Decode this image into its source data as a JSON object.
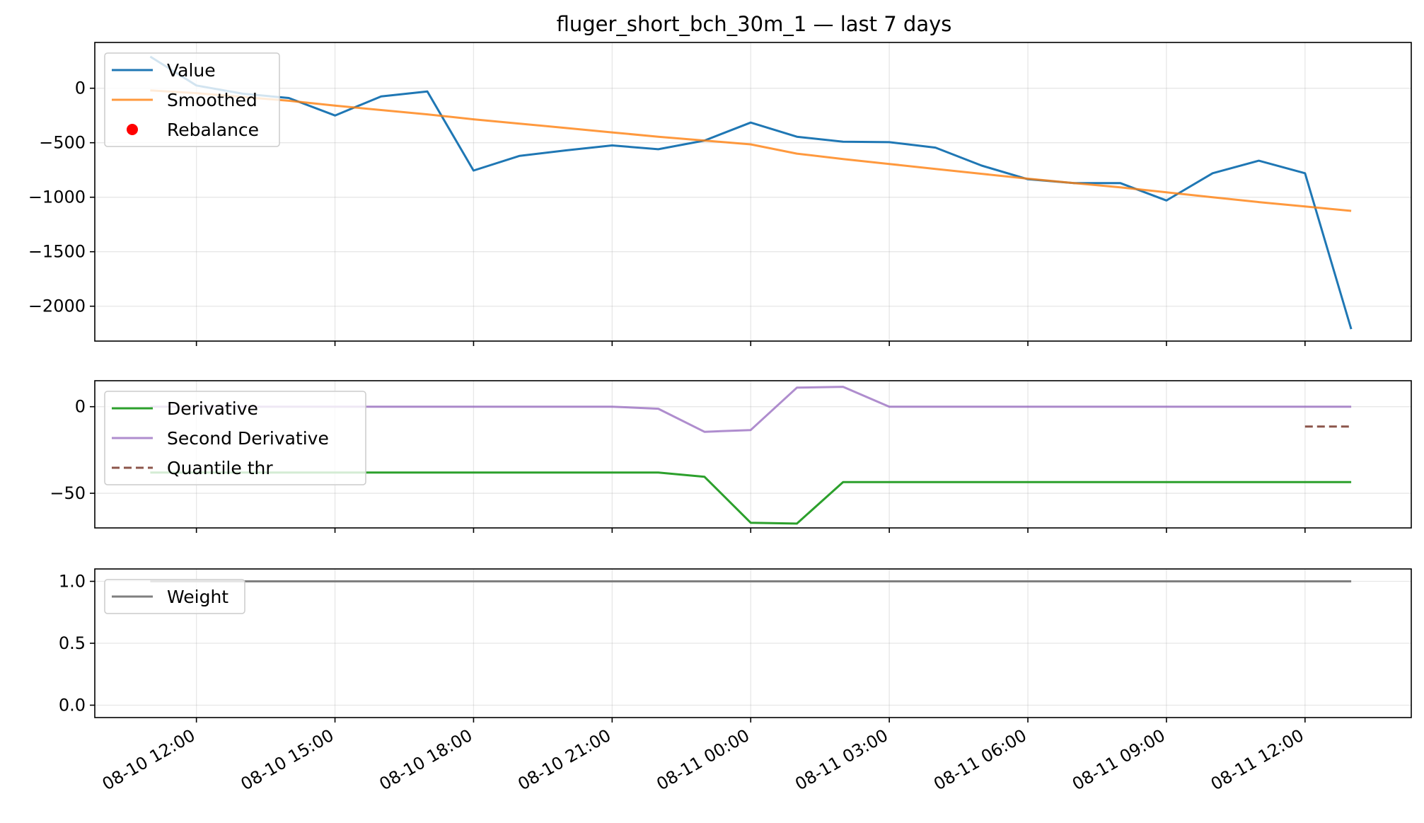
{
  "chart_data": {
    "title": "fluger_short_bch_30m_1 — last 7 days",
    "type": "line",
    "x_tick_labels": [
      "08-10 12:00",
      "08-10 15:00",
      "08-10 18:00",
      "08-10 21:00",
      "08-11 00:00",
      "08-11 03:00",
      "08-11 06:00",
      "08-11 09:00",
      "08-11 12:00"
    ],
    "x_tick_hours": [
      0,
      3,
      6,
      9,
      12,
      15,
      18,
      21,
      24
    ],
    "x_range_hours": [
      -2.2,
      26.3
    ],
    "panels": [
      {
        "id": "value",
        "ylim": [
          -2320,
          420
        ],
        "yticks": [
          0,
          -500,
          -1000,
          -1500,
          -2000
        ],
        "ytick_labels": [
          "0",
          "−500",
          "−1000",
          "−1500",
          "−2000"
        ],
        "grid": true,
        "legend": "upper left",
        "series": [
          {
            "name": "Value",
            "color": "#1f77b4",
            "style": "solid",
            "x": [
              -1,
              0,
              1,
              2,
              3,
              4,
              5,
              6,
              7,
              8,
              9,
              10,
              11,
              12,
              13,
              14,
              15,
              16,
              17,
              18,
              19,
              20,
              21,
              22,
              23,
              24,
              25
            ],
            "y": [
              290,
              25,
              -50,
              -90,
              -250,
              -75,
              -30,
              -755,
              -620,
              -570,
              -525,
              -560,
              -480,
              -315,
              -445,
              -490,
              -495,
              -545,
              -710,
              -835,
              -870,
              -870,
              -1030,
              -780,
              -665,
              -780,
              -2210
            ]
          },
          {
            "name": "Smoothed",
            "color": "#ff7f0e",
            "style": "solid",
            "opacity": 0.8,
            "x": [
              -1,
              0,
              1,
              2,
              3,
              4,
              5,
              6,
              7,
              8,
              9,
              10,
              11,
              12,
              13,
              14,
              15,
              16,
              17,
              18,
              19,
              20,
              21,
              22,
              23,
              24,
              25
            ],
            "y": [
              -20,
              -45,
              -80,
              -115,
              -160,
              -200,
              -240,
              -285,
              -325,
              -365,
              -405,
              -445,
              -480,
              -515,
              -600,
              -650,
              -695,
              -740,
              -785,
              -830,
              -870,
              -910,
              -955,
              -1000,
              -1045,
              -1085,
              -1125
            ]
          },
          {
            "name": "Rebalance",
            "color": "#ff0000",
            "style": "marker",
            "x": [],
            "y": []
          }
        ]
      },
      {
        "id": "derivative",
        "ylim": [
          -70,
          15
        ],
        "yticks": [
          0,
          -50
        ],
        "ytick_labels": [
          "0",
          "−50"
        ],
        "grid": true,
        "legend": "upper left",
        "series": [
          {
            "name": "Derivative",
            "color": "#2ca02c",
            "style": "solid",
            "x": [
              -1,
              0,
              1,
              2,
              3,
              4,
              5,
              6,
              7,
              8,
              9,
              10,
              11,
              12,
              13,
              14,
              15,
              16,
              17,
              18,
              19,
              20,
              21,
              22,
              23,
              24,
              25
            ],
            "y": [
              -38,
              -38,
              -38,
              -38,
              -38,
              -38,
              -38,
              -38,
              -38,
              -38,
              -38,
              -38,
              -40.5,
              -67,
              -67.5,
              -43.5,
              -43.5,
              -43.5,
              -43.5,
              -43.5,
              -43.5,
              -43.5,
              -43.5,
              -43.5,
              -43.5,
              -43.5,
              -43.5
            ]
          },
          {
            "name": "Second Derivative",
            "color": "#9467bd",
            "style": "solid",
            "opacity": 0.75,
            "x": [
              -1,
              0,
              1,
              2,
              3,
              4,
              5,
              6,
              7,
              8,
              9,
              10,
              11,
              12,
              13,
              14,
              15,
              16,
              17,
              18,
              19,
              20,
              21,
              22,
              23,
              24,
              25
            ],
            "y": [
              0,
              0,
              0,
              0,
              0,
              0,
              0,
              0,
              0,
              0,
              0,
              -1.2,
              -14.5,
              -13.5,
              11,
              11.5,
              0,
              0,
              0,
              0,
              0,
              0,
              0,
              0,
              0,
              0,
              0
            ]
          },
          {
            "name": "Quantile thr",
            "color": "#8c564b",
            "style": "dashed",
            "x": [
              24,
              25
            ],
            "y": [
              -11.5,
              -11.5
            ]
          }
        ]
      },
      {
        "id": "weight",
        "ylim": [
          -0.1,
          1.1
        ],
        "yticks": [
          1.0,
          0.5,
          0.0
        ],
        "ytick_labels": [
          "1.0",
          "0.5",
          "0.0"
        ],
        "grid": true,
        "legend": "upper left",
        "series": [
          {
            "name": "Weight",
            "color": "#7f7f7f",
            "style": "solid",
            "x": [
              -1,
              25
            ],
            "y": [
              1.0,
              1.0
            ]
          }
        ]
      }
    ]
  }
}
